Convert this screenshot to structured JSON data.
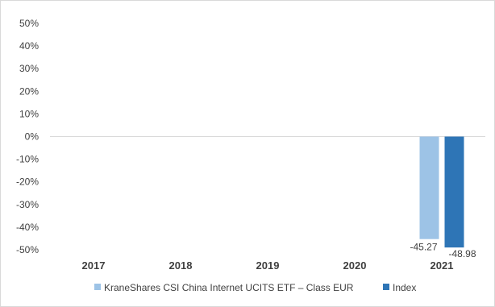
{
  "chart_data": {
    "type": "bar",
    "title": "",
    "xlabel": "",
    "ylabel": "",
    "categories": [
      "2017",
      "2018",
      "2019",
      "2020",
      "2021"
    ],
    "series": [
      {
        "name": "KraneShares CSI China Internet UCITS ETF – Class EUR",
        "color": "#9dc3e6",
        "values": [
          null,
          null,
          null,
          null,
          -45.27
        ],
        "data_labels": [
          null,
          null,
          null,
          null,
          "-45.27"
        ]
      },
      {
        "name": "Index",
        "color": "#2e75b6",
        "values": [
          null,
          null,
          null,
          null,
          -48.98
        ],
        "data_labels": [
          null,
          null,
          null,
          null,
          "-48.98"
        ]
      }
    ],
    "ylim": [
      -50,
      50
    ],
    "y_ticks": [
      50,
      40,
      30,
      20,
      10,
      0,
      -10,
      -20,
      -30,
      -40,
      -50
    ],
    "y_tick_labels": [
      "50%",
      "40%",
      "30%",
      "20%",
      "10%",
      "0%",
      "-10%",
      "-20%",
      "-30%",
      "-40%",
      "-50%"
    ],
    "grid": false,
    "legend_position": "bottom"
  }
}
